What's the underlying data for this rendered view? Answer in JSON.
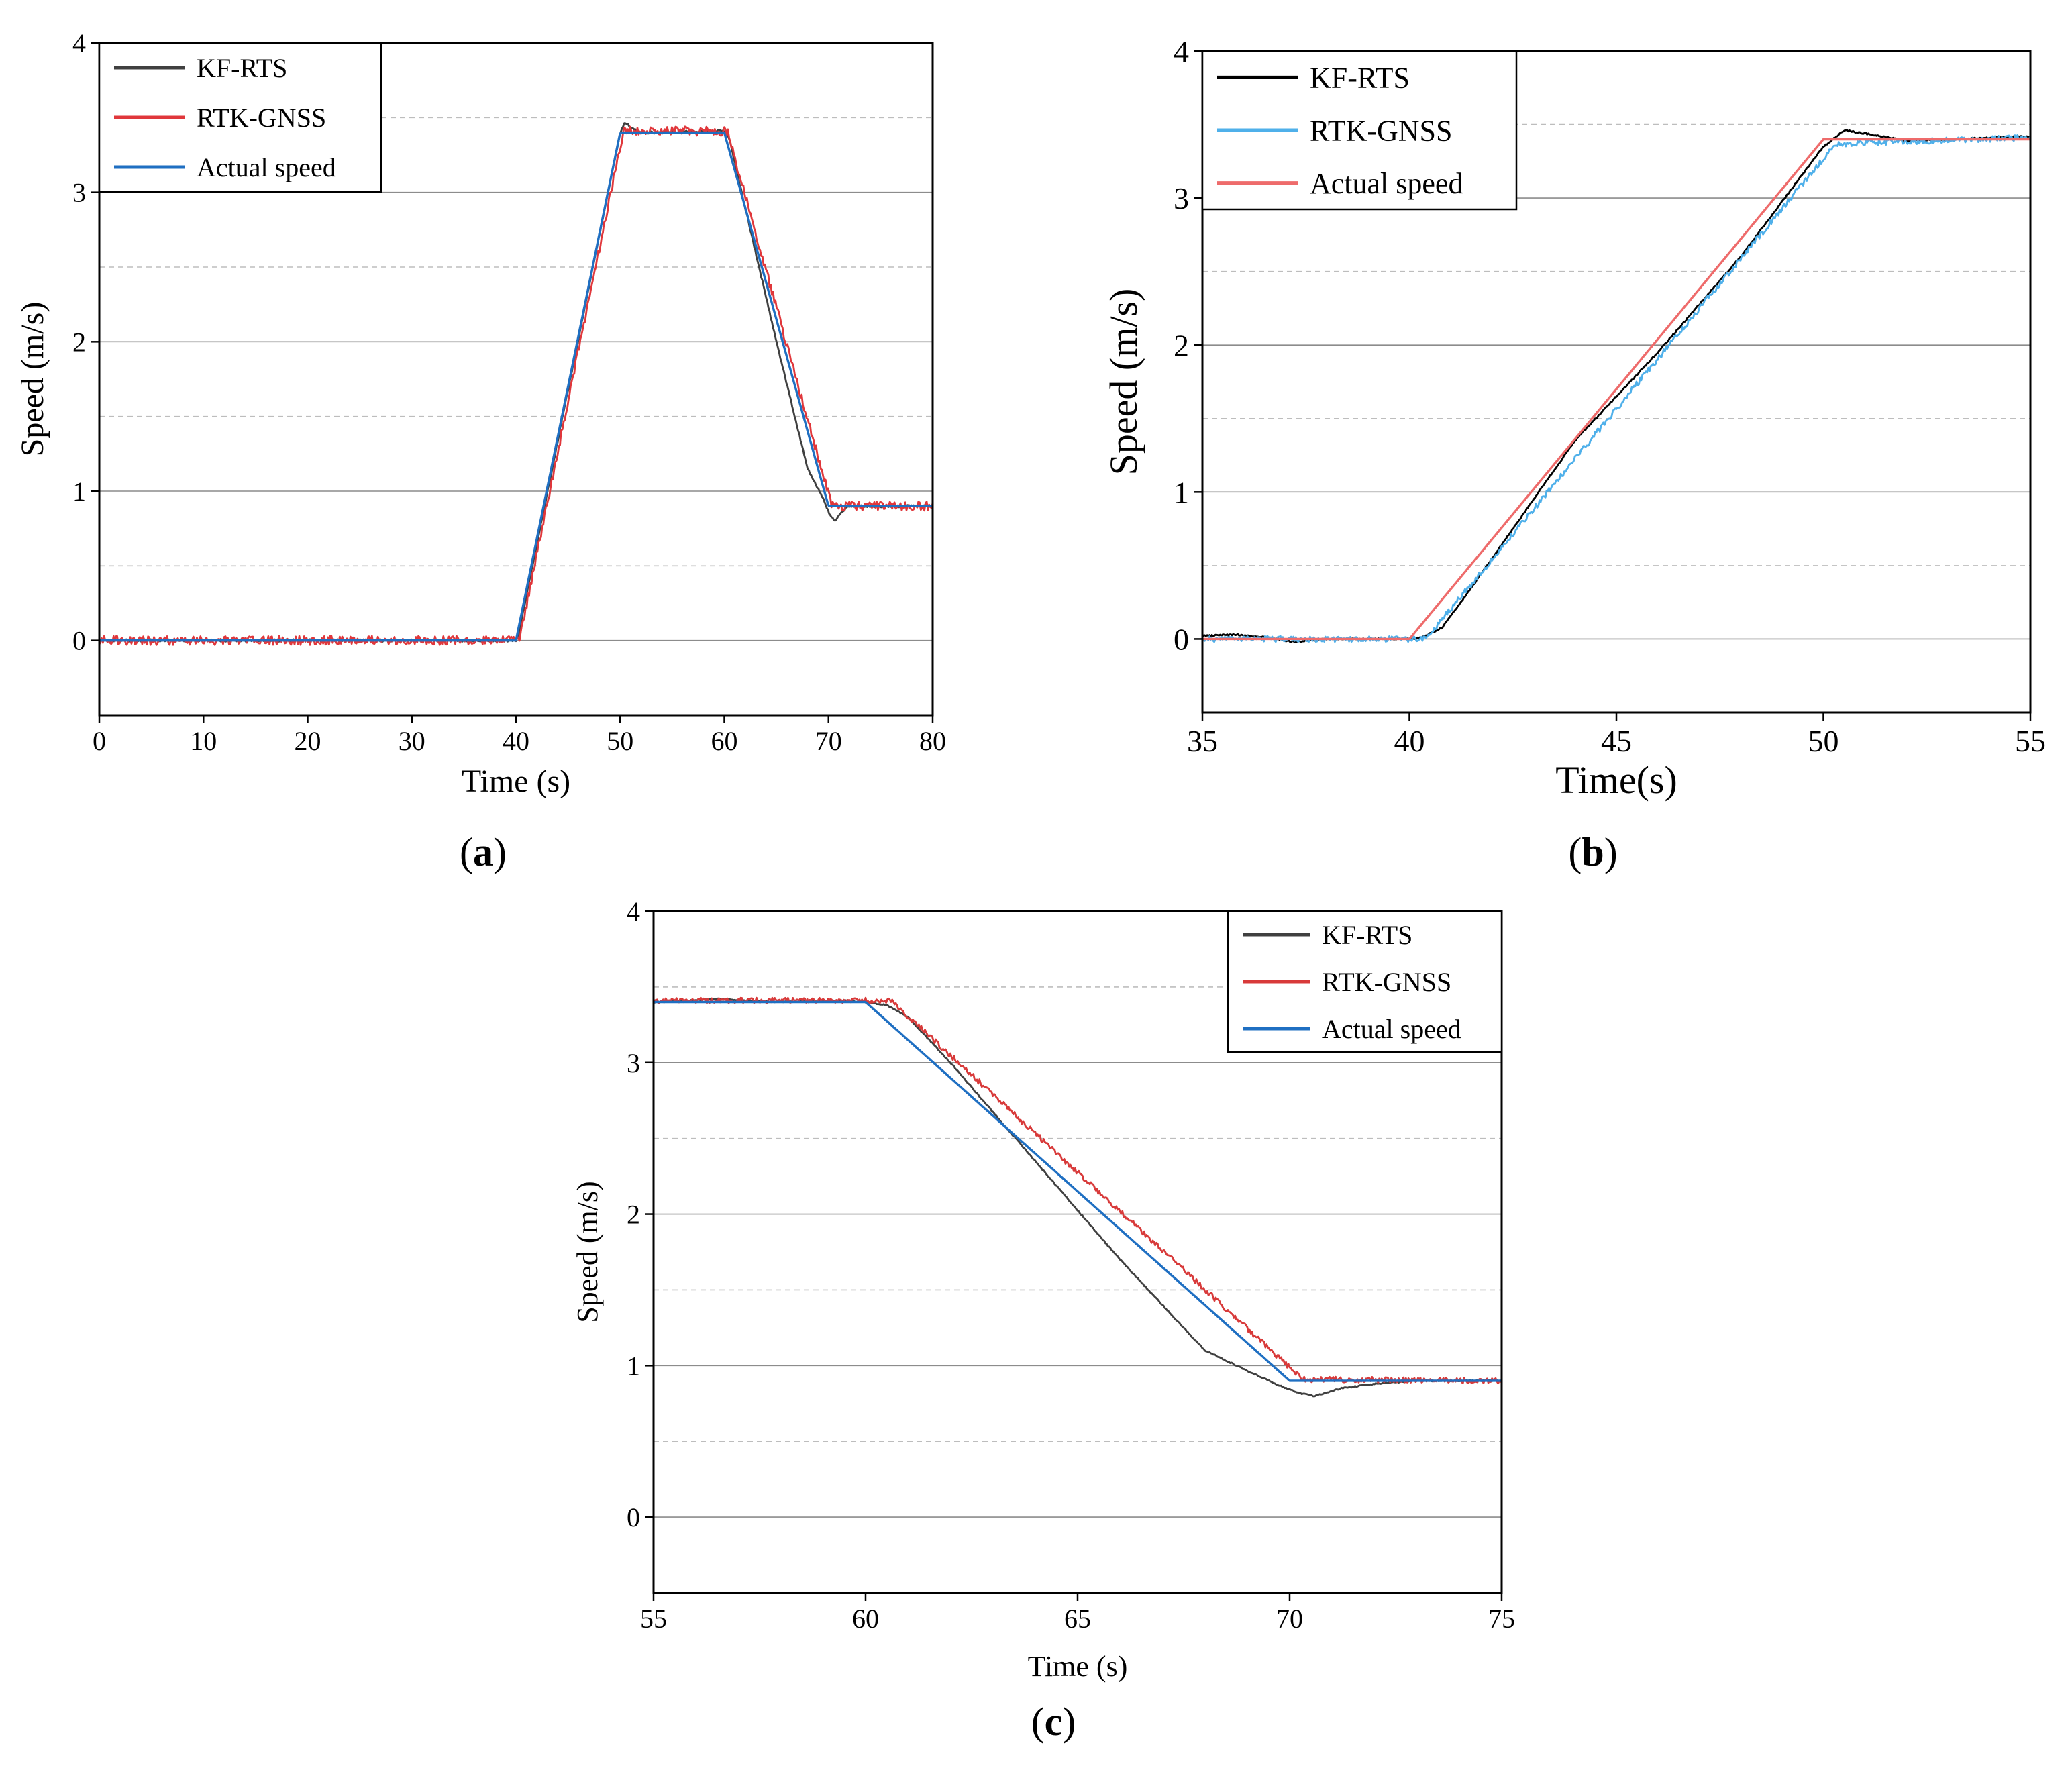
{
  "figure_labels": {
    "a": "a",
    "b": "b",
    "c": "c"
  },
  "chart_data": [
    {
      "id": "a",
      "panel_label": "a",
      "type": "line",
      "xlabel": "Time (s)",
      "ylabel": "Speed (m/s)",
      "xlim": [
        0,
        80
      ],
      "ylim": [
        -0.5,
        4
      ],
      "xticks": [
        0,
        10,
        20,
        30,
        40,
        50,
        60,
        70,
        80
      ],
      "yticks": [
        0,
        1,
        2,
        3,
        4
      ],
      "grid": "horizontal",
      "legend_position": "top-left",
      "series": [
        {
          "name": "KF-RTS",
          "color": "#404040",
          "noise": 0.008,
          "x": [
            0,
            40,
            40.2,
            41,
            50,
            50.5,
            51,
            52,
            60,
            60.4,
            62,
            65,
            68,
            69.5,
            70.2,
            70.6,
            71.2,
            72,
            80
          ],
          "y": [
            0,
            0,
            0.02,
            0.3,
            3.4,
            3.47,
            3.43,
            3.4,
            3.41,
            3.38,
            2.9,
            2.0,
            1.15,
            0.95,
            0.83,
            0.8,
            0.86,
            0.9,
            0.9
          ]
        },
        {
          "name": "RTK-GNSS",
          "color": "#e0373b",
          "noise": 0.03,
          "x": [
            0,
            40.3,
            50.3,
            60.3,
            70.3,
            80
          ],
          "y": [
            0,
            0,
            3.41,
            3.41,
            0.9,
            0.9
          ]
        },
        {
          "name": "Actual speed",
          "color": "#1f6fc2",
          "noise": 0,
          "x": [
            0,
            40,
            50,
            60,
            70,
            80
          ],
          "y": [
            0,
            0,
            3.4,
            3.4,
            0.9,
            0.9
          ]
        }
      ]
    },
    {
      "id": "b",
      "panel_label": "b",
      "type": "line",
      "xlabel": "Time(s)",
      "ylabel": "Speed (m/s)",
      "xlim": [
        35,
        55
      ],
      "ylim": [
        -0.5,
        4
      ],
      "xticks": [
        35,
        40,
        45,
        50,
        55
      ],
      "yticks": [
        0,
        1,
        2,
        3,
        4
      ],
      "grid": "horizontal",
      "legend_position": "top-left",
      "series": [
        {
          "name": "KF-RTS",
          "color": "#000000",
          "noise": 0.005,
          "x": [
            35,
            35.8,
            36.6,
            37.2,
            38,
            40,
            40.3,
            40.8,
            41.5,
            42.5,
            44,
            46,
            48,
            50,
            50.5,
            51,
            52,
            53,
            54,
            55
          ],
          "y": [
            0.02,
            0.03,
            0.01,
            -0.02,
            0,
            0,
            0.01,
            0.08,
            0.35,
            0.75,
            1.35,
            1.95,
            2.6,
            3.35,
            3.46,
            3.44,
            3.39,
            3.4,
            3.41,
            3.42
          ]
        },
        {
          "name": "RTK-GNSS",
          "color": "#4fb0ea",
          "noise": 0.02,
          "x": [
            35,
            40.4,
            50.3,
            55
          ],
          "y": [
            0,
            0,
            3.37,
            3.41
          ]
        },
        {
          "name": "Actual speed",
          "color": "#ee6b6b",
          "noise": 0,
          "x": [
            35,
            40,
            50,
            55
          ],
          "y": [
            0,
            0,
            3.4,
            3.4
          ]
        }
      ]
    },
    {
      "id": "c",
      "panel_label": "c",
      "type": "line",
      "xlabel": "Time (s)",
      "ylabel": "Speed (m/s)",
      "xlim": [
        55,
        75
      ],
      "ylim": [
        -0.5,
        4
      ],
      "xticks": [
        55,
        60,
        65,
        70,
        75
      ],
      "yticks": [
        0,
        1,
        2,
        3,
        4
      ],
      "grid": "horizontal",
      "legend_position": "top-right",
      "series": [
        {
          "name": "KF-RTS",
          "color": "#404040",
          "noise": 0.004,
          "x": [
            55,
            56.5,
            58,
            59.5,
            60,
            60.5,
            61,
            62,
            64,
            66,
            68,
            69.5,
            70.2,
            70.6,
            71.2,
            72,
            73,
            75
          ],
          "y": [
            3.4,
            3.42,
            3.4,
            3.41,
            3.4,
            3.38,
            3.3,
            3.0,
            2.35,
            1.7,
            1.1,
            0.9,
            0.82,
            0.8,
            0.85,
            0.88,
            0.9,
            0.9
          ]
        },
        {
          "name": "RTK-GNSS",
          "color": "#d83a3a",
          "noise": 0.018,
          "x": [
            55,
            60.6,
            70.3,
            75
          ],
          "y": [
            3.41,
            3.41,
            0.91,
            0.9
          ]
        },
        {
          "name": "Actual speed",
          "color": "#1f6fc2",
          "noise": 0,
          "x": [
            55,
            60,
            70,
            75
          ],
          "y": [
            3.4,
            3.4,
            0.9,
            0.9
          ]
        }
      ]
    }
  ]
}
